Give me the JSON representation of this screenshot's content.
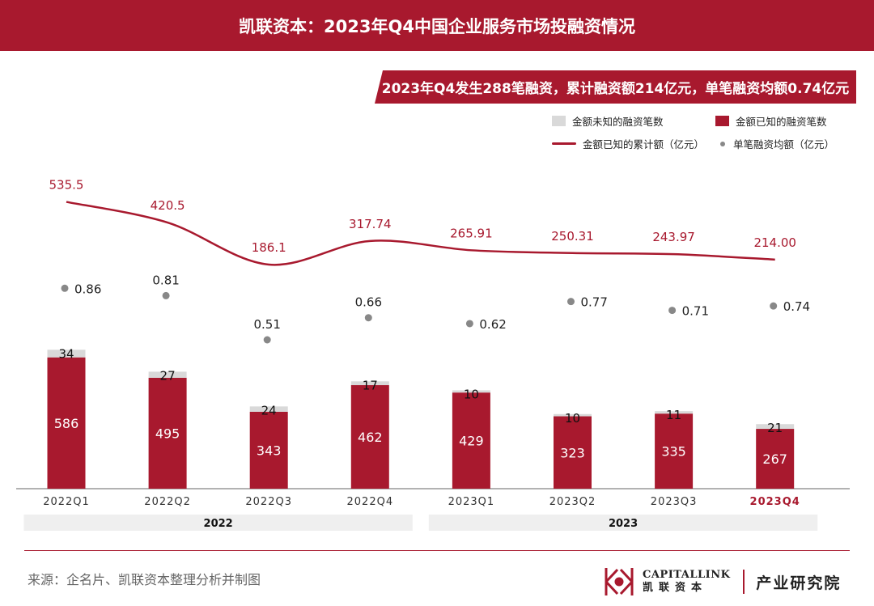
{
  "header": {
    "title": "凯联资本：2023年Q4中国企业服务市场投融资情况"
  },
  "banner": {
    "text": "2023年Q4发生288笔融资，累计融资额214亿元，单笔融资均额0.74亿元"
  },
  "legend": {
    "unknown": "金额未知的融资笔数",
    "known": "金额已知的融资笔数",
    "total": "金额已知的累计额（亿元）",
    "avg": "单笔融资均额（亿元）"
  },
  "colors": {
    "accent": "#a8192e",
    "grey_bar": "#d9d9d9",
    "dot": "#888888"
  },
  "chart_data": {
    "type": "bar",
    "categories": [
      "2022Q1",
      "2022Q2",
      "2022Q3",
      "2022Q4",
      "2023Q1",
      "2023Q2",
      "2023Q3",
      "2023Q4"
    ],
    "highlight_category": "2023Q4",
    "series": [
      {
        "name": "金额已知的融资笔数",
        "values": [
          586,
          495,
          343,
          462,
          429,
          323,
          335,
          267
        ]
      },
      {
        "name": "金额未知的融资笔数",
        "values": [
          34,
          27,
          24,
          17,
          10,
          10,
          11,
          21
        ]
      },
      {
        "name": "金额已知的累计额（亿元）",
        "values": [
          "535.5",
          "420.5",
          "186.1",
          "317.74",
          "265.91",
          "250.31",
          "243.97",
          "214.00"
        ]
      },
      {
        "name": "单笔融资均额（亿元）",
        "values": [
          "0.86",
          "0.81",
          "0.51",
          "0.66",
          "0.62",
          "0.77",
          "0.71",
          "0.74"
        ]
      }
    ],
    "year_groups": [
      {
        "label": "2022",
        "categories": [
          "2022Q1",
          "2022Q2",
          "2022Q3",
          "2022Q4"
        ]
      },
      {
        "label": "2023",
        "categories": [
          "2023Q1",
          "2023Q2",
          "2023Q3",
          "2023Q4"
        ]
      }
    ],
    "grid": false
  },
  "footer": {
    "source": "来源：企名片、凯联资本整理分析并制图",
    "logo_en": "CAPITALLINK",
    "logo_cn": "凯联资本",
    "institute": "产业研究院"
  }
}
